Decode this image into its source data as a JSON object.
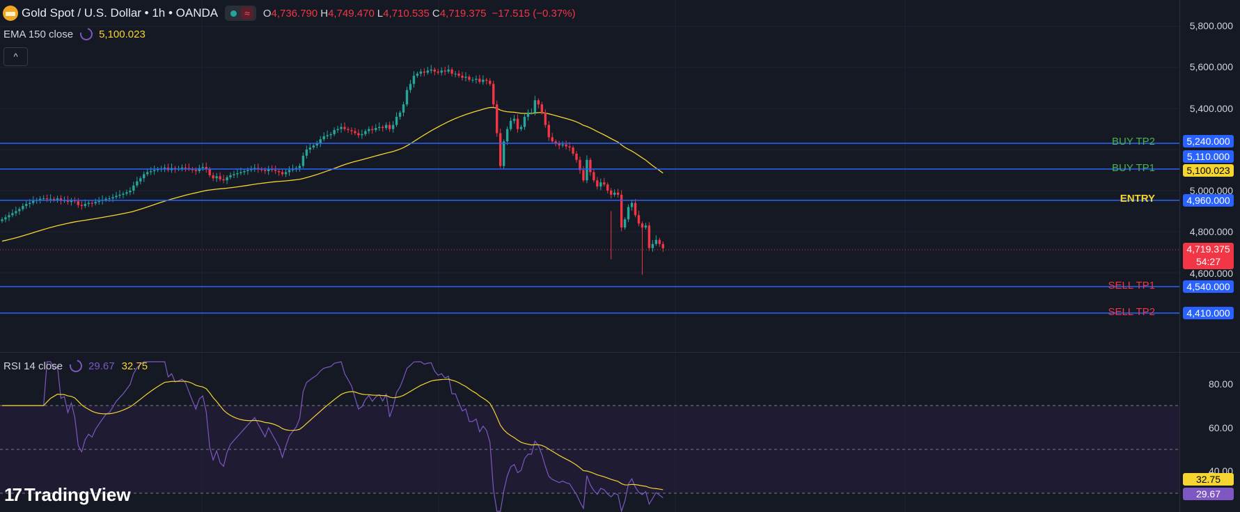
{
  "header": {
    "title": "Gold Spot / U.S. Dollar • 1h • OANDA",
    "open_label": "O",
    "open": "4,736.790",
    "high_label": "H",
    "high": "4,749.470",
    "low_label": "L",
    "low": "4,710.535",
    "close_label": "C",
    "close": "4,719.375",
    "change": "−17.515 (−0.37%)",
    "wave_icon": "≈",
    "collapse_icon": "^"
  },
  "ema": {
    "label": "EMA 150 close",
    "value": "5,100.023"
  },
  "rsi": {
    "label": "RSI 14 close",
    "value": "29.67",
    "ma_value": "32.75"
  },
  "price_axis": [
    "5,800.000",
    "5,600.000",
    "5,400.000",
    "5,000.000",
    "4,800.000",
    "4,600.000"
  ],
  "rsi_axis": [
    "80.00",
    "60.00",
    "40.00"
  ],
  "levels": [
    {
      "name": "BUY TP2",
      "price": "5,240.000"
    },
    {
      "name": "BUY TP1",
      "price": "5,110.000"
    },
    {
      "name": "ENTRY",
      "price": "4,960.000"
    },
    {
      "name": "SELL TP1",
      "price": "4,540.000"
    },
    {
      "name": "SELL TP2",
      "price": "4,410.000"
    }
  ],
  "last_price": {
    "price": "4,719.375",
    "countdown": "54:27"
  },
  "ema_tag": "5,100.023",
  "rsi_tags": {
    "ma": "32.75",
    "rsi": "29.67"
  },
  "logo": {
    "text": "TradingView",
    "mark": "17"
  },
  "colors": {
    "bg": "#151924",
    "up": "#26a69a",
    "down": "#f23645",
    "level": "#2962ff",
    "ema": "#f5d531",
    "rsi": "#7e57c2"
  },
  "chart_data": [
    {
      "type": "candlestick",
      "title": "Gold Spot / U.S. Dollar",
      "ylim": [
        4400,
        5850
      ],
      "close_series": [
        4860,
        4870,
        4880,
        4890,
        4900,
        4910,
        4925,
        4935,
        4940,
        4950,
        4955,
        4960,
        4962,
        4958,
        4960,
        4955,
        4962,
        4950,
        4952,
        4945,
        4955,
        4948,
        4930,
        4925,
        4935,
        4940,
        4938,
        4945,
        4950,
        4955,
        4960,
        4962,
        4968,
        4975,
        4980,
        4985,
        4992,
        5000,
        5025,
        5045,
        5060,
        5080,
        5090,
        5095,
        5100,
        5105,
        5108,
        5112,
        5100,
        5110,
        5105,
        5108,
        5112,
        5110,
        5105,
        5100,
        5095,
        5110,
        5115,
        5105,
        5075,
        5060,
        5070,
        5055,
        5050,
        5065,
        5075,
        5080,
        5085,
        5090,
        5095,
        5100,
        5105,
        5110,
        5105,
        5100,
        5095,
        5105,
        5100,
        5095,
        5090,
        5080,
        5090,
        5100,
        5105,
        5110,
        5120,
        5170,
        5200,
        5210,
        5220,
        5230,
        5250,
        5265,
        5270,
        5275,
        5295,
        5300,
        5310,
        5300,
        5295,
        5290,
        5280,
        5270,
        5275,
        5290,
        5300,
        5295,
        5305,
        5310,
        5305,
        5320,
        5300,
        5320,
        5360,
        5380,
        5420,
        5490,
        5520,
        5560,
        5570,
        5580,
        5575,
        5585,
        5590,
        5580,
        5575,
        5585,
        5580,
        5590,
        5570,
        5570,
        5560,
        5550,
        5555,
        5540,
        5540,
        5545,
        5530,
        5540,
        5535,
        5520,
        5420,
        5280,
        5120,
        5240,
        5300,
        5340,
        5350,
        5300,
        5310,
        5360,
        5380,
        5380,
        5440,
        5420,
        5380,
        5320,
        5260,
        5240,
        5230,
        5220,
        5225,
        5215,
        5210,
        5180,
        5150,
        5100,
        5050,
        5150,
        5090,
        5050,
        5020,
        5040,
        5030,
        5000,
        4980,
        4990,
        4980,
        4820,
        4860,
        4920,
        4940,
        4880,
        4840,
        4820,
        4830,
        4720,
        4740,
        4760,
        4740,
        4719
      ],
      "ema150_tail": "5,100.023"
    },
    {
      "type": "line",
      "title": "RSI 14 close",
      "ylim": [
        25,
        95
      ],
      "bands": [
        30,
        50,
        70
      ],
      "rsi_last": 29.67,
      "ma_last": 32.75
    }
  ]
}
